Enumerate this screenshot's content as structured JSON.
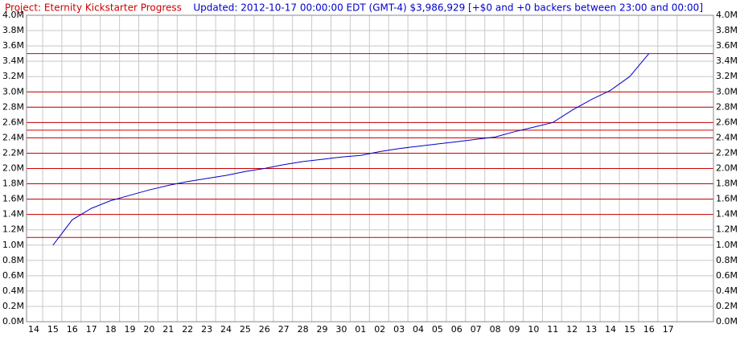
{
  "chart_data": {
    "type": "line",
    "title": "Project: Eternity Kickstarter Progress",
    "subtitle": "Updated: 2012-10-17 00:00:00 EDT (GMT-4) $3,986,929 [+$0 and +0 backers between 23:00 and 00:00]",
    "categories": [
      "14",
      "15",
      "16",
      "17",
      "18",
      "19",
      "20",
      "21",
      "22",
      "23",
      "24",
      "25",
      "26",
      "27",
      "28",
      "29",
      "30",
      "01",
      "02",
      "03",
      "04",
      "05",
      "06",
      "07",
      "08",
      "09",
      "10",
      "11",
      "12",
      "13",
      "14",
      "15",
      "16",
      "17"
    ],
    "series": [
      {
        "name": "Pledged",
        "color": "#0000cc",
        "values": [
          null,
          1000000,
          1330000,
          1480000,
          1580000,
          1650000,
          1720000,
          1780000,
          1830000,
          1870000,
          1910000,
          1960000,
          2000000,
          2050000,
          2090000,
          2120000,
          2150000,
          2170000,
          2220000,
          2260000,
          2290000,
          2320000,
          2350000,
          2380000,
          2410000,
          2480000,
          2540000,
          2600000,
          2760000,
          2900000,
          3020000,
          3200000,
          3500000,
          null
        ]
      }
    ],
    "reference_lines": [
      1100000,
      1400000,
      1600000,
      1800000,
      2000000,
      2200000,
      2400000,
      2500000,
      2600000,
      2800000,
      3000000,
      3500000
    ],
    "reference_color": "#cc0000",
    "ylim": [
      0,
      4000000
    ],
    "yticks": [
      {
        "value": 0,
        "label": "0.0M"
      },
      {
        "value": 200000,
        "label": "0.2M"
      },
      {
        "value": 400000,
        "label": "0.4M"
      },
      {
        "value": 600000,
        "label": "0.6M"
      },
      {
        "value": 800000,
        "label": "0.8M"
      },
      {
        "value": 1000000,
        "label": "1.0M"
      },
      {
        "value": 1200000,
        "label": "1.2M"
      },
      {
        "value": 1400000,
        "label": "1.4M"
      },
      {
        "value": 1600000,
        "label": "1.6M"
      },
      {
        "value": 1800000,
        "label": "1.8M"
      },
      {
        "value": 2000000,
        "label": "2.0M"
      },
      {
        "value": 2200000,
        "label": "2.2M"
      },
      {
        "value": 2400000,
        "label": "2.4M"
      },
      {
        "value": 2600000,
        "label": "2.6M"
      },
      {
        "value": 2800000,
        "label": "2.8M"
      },
      {
        "value": 3000000,
        "label": "3.0M"
      },
      {
        "value": 3200000,
        "label": "3.2M"
      },
      {
        "value": 3400000,
        "label": "3.4M"
      },
      {
        "value": 3600000,
        "label": "3.6M"
      },
      {
        "value": 3800000,
        "label": "3.8M"
      },
      {
        "value": 4000000,
        "label": "4.0M"
      }
    ],
    "grid": true
  }
}
